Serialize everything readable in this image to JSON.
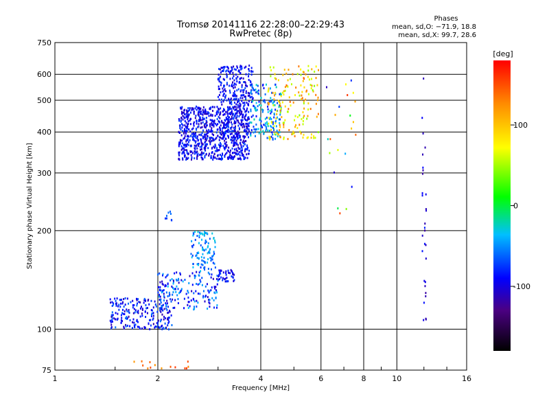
{
  "chart_data": {
    "type": "scatter",
    "title": "Tromsø 20141116 22:28:00–22:29:43",
    "subtitle": "RwPretec (8p)",
    "xlabel": "Frequency [MHz]",
    "ylabel": "Stationary phase Virtual Height [km]",
    "x_scale": "log",
    "y_scale": "log",
    "xlim": [
      1,
      16
    ],
    "ylim": [
      75,
      750
    ],
    "x_ticks": [
      1,
      2,
      4,
      6,
      8,
      10,
      16
    ],
    "y_ticks": [
      75,
      100,
      200,
      300,
      400,
      500,
      600,
      750
    ],
    "grid": true,
    "phase_header": "Phases",
    "phase_stats": [
      "mean, sd,O: −71.9, 18.8",
      "mean, sd,X:  99.7, 28.6"
    ],
    "colorbar": {
      "label": "[deg]",
      "range": [
        -180,
        180
      ],
      "ticks": [
        100,
        0,
        -100
      ],
      "colors": [
        "#000000",
        "#4b0082",
        "#0000ff",
        "#00bfff",
        "#00ff00",
        "#ffff00",
        "#ff8c00",
        "#ff0000"
      ]
    },
    "clusters": [
      {
        "f": [
          2.3,
          3.7
        ],
        "h": [
          330,
          480
        ],
        "phase": [
          -115,
          -70
        ],
        "n": 900
      },
      {
        "f": [
          3.0,
          3.8
        ],
        "h": [
          480,
          640
        ],
        "phase": [
          -110,
          -70
        ],
        "n": 220
      },
      {
        "f": [
          3.7,
          4.6
        ],
        "h": [
          380,
          560
        ],
        "phase": [
          -90,
          -20
        ],
        "n": 160
      },
      {
        "f": [
          4.2,
          5.9
        ],
        "h": [
          380,
          640
        ],
        "phase": [
          40,
          140
        ],
        "n": 170
      },
      {
        "f": [
          1.45,
          2.2
        ],
        "h": [
          100,
          125
        ],
        "phase": [
          -120,
          -60
        ],
        "n": 220
      },
      {
        "f": [
          2.0,
          3.0
        ],
        "h": [
          115,
          150
        ],
        "phase": [
          -110,
          -40
        ],
        "n": 180
      },
      {
        "f": [
          2.5,
          2.95
        ],
        "h": [
          150,
          200
        ],
        "phase": [
          -80,
          -30
        ],
        "n": 100
      },
      {
        "f": [
          3.0,
          3.35
        ],
        "h": [
          140,
          152
        ],
        "phase": [
          -110,
          -70
        ],
        "n": 40
      },
      {
        "f": [
          2.1,
          2.5
        ],
        "h": [
          215,
          230
        ],
        "phase": [
          -80,
          -60
        ],
        "n": 8
      },
      {
        "f": [
          1.7,
          2.5
        ],
        "h": [
          76,
          80
        ],
        "phase": [
          110,
          160
        ],
        "n": 14
      },
      {
        "f": [
          11.8,
          12.2
        ],
        "h": [
          105,
          620
        ],
        "phase": [
          -120,
          -80
        ],
        "n": 30
      },
      {
        "f": [
          6.2,
          7.6
        ],
        "h": [
          220,
          600
        ],
        "phase": [
          -120,
          160
        ],
        "n": 22
      }
    ]
  }
}
